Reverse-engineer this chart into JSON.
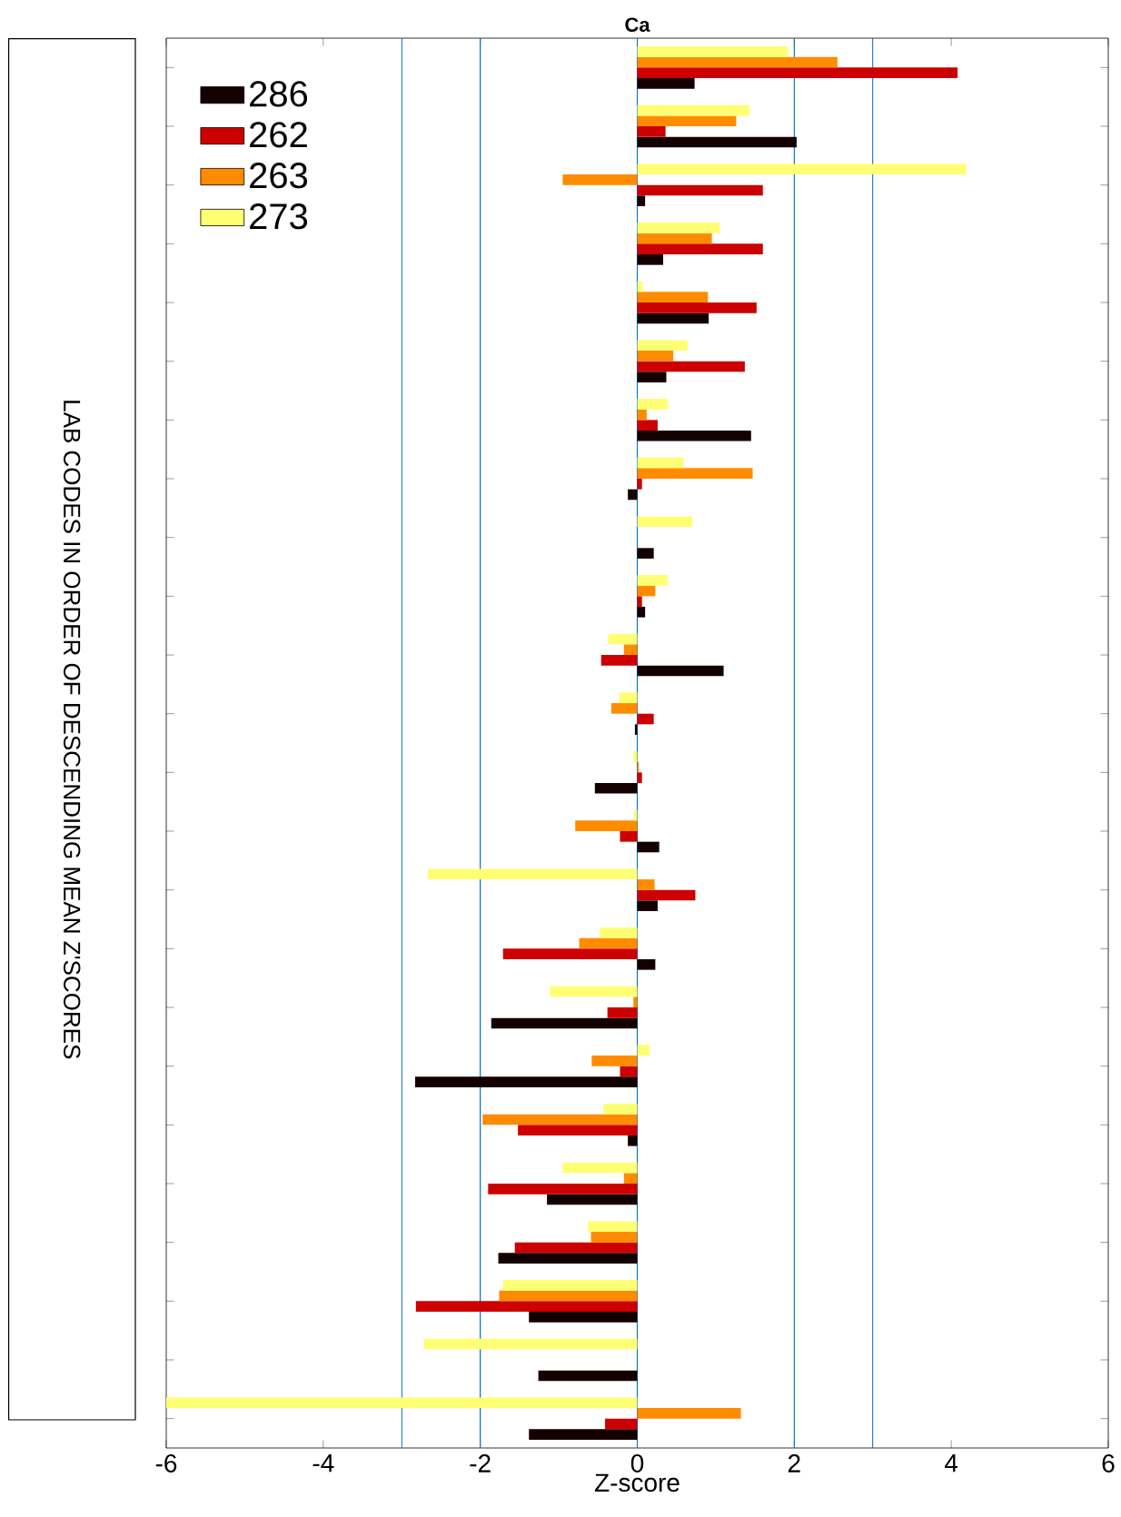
{
  "chart_data": {
    "type": "bar",
    "orientation": "horizontal",
    "title": "Ca",
    "xlabel": "Z-score",
    "ylabel": "LAB CODES IN ORDER OF DESCENDING MEAN Z'SCORES",
    "categories": [
      null,
      null,
      null,
      null,
      null,
      null,
      null,
      null,
      null,
      null,
      null,
      null,
      null,
      null,
      null,
      null,
      null,
      null,
      null,
      null,
      null,
      null,
      null,
      null
    ],
    "series": [
      {
        "name": "286",
        "color": "#140000",
        "values": [
          0.73,
          2.03,
          0.1,
          0.33,
          0.91,
          0.37,
          1.45,
          -0.12,
          0.21,
          0.1,
          1.1,
          -0.03,
          -0.54,
          0.28,
          0.26,
          0.23,
          -1.86,
          -2.83,
          -0.12,
          -1.15,
          -1.77,
          -1.38,
          -1.26,
          -1.38
        ]
      },
      {
        "name": "262",
        "color": "#cc0000",
        "values": [
          4.08,
          0.36,
          1.6,
          1.6,
          1.52,
          1.37,
          0.26,
          0.06,
          null,
          0.06,
          -0.46,
          0.21,
          0.06,
          -0.22,
          0.74,
          -1.71,
          -0.38,
          -0.22,
          -1.52,
          -1.9,
          -1.56,
          -2.82,
          null,
          -0.41
        ]
      },
      {
        "name": "263",
        "color": "#ff8c00",
        "values": [
          2.55,
          1.26,
          -0.95,
          0.95,
          0.9,
          0.46,
          0.12,
          1.47,
          null,
          0.23,
          -0.17,
          -0.33,
          0.02,
          -0.79,
          0.22,
          -0.74,
          -0.05,
          -0.58,
          -1.97,
          -0.17,
          -0.59,
          -1.76,
          null,
          1.32
        ]
      },
      {
        "name": "273",
        "color": "#ffff73",
        "values": [
          1.92,
          1.43,
          4.19,
          1.05,
          0.07,
          0.64,
          0.39,
          0.59,
          0.7,
          0.39,
          -0.37,
          -0.23,
          -0.05,
          -0.04,
          -2.67,
          -0.48,
          -1.11,
          0.16,
          -0.43,
          -0.95,
          -0.63,
          -1.71,
          -2.72,
          -6.0
        ]
      }
    ],
    "xlim": [
      -6,
      6
    ],
    "xticks": [
      -6,
      -4,
      -2,
      0,
      2,
      4,
      6
    ],
    "ref_lines": [
      {
        "axis": "x",
        "value": -3,
        "color": "#0072bd"
      },
      {
        "axis": "x",
        "value": -2,
        "color": "#0072bd"
      },
      {
        "axis": "x",
        "value": 0,
        "color": "#0072bd"
      },
      {
        "axis": "x",
        "value": 2,
        "color": "#0072bd"
      },
      {
        "axis": "x",
        "value": 3,
        "color": "#0072bd"
      }
    ],
    "legend": "top left",
    "tick_labels": "x"
  }
}
